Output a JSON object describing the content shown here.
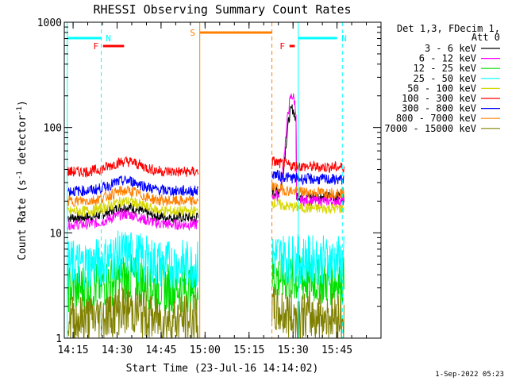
{
  "chart_data": {
    "type": "line",
    "title": "RHESSI Observing Summary Count Rates",
    "xlabel": "Start Time (23-Jul-16 14:14:02)",
    "ylabel_main": "Count Rate (s",
    "ylabel_sup": "-1",
    "ylabel_mid": " detector",
    "ylabel_end": ")",
    "y_scale": "log",
    "ylim": [
      1,
      1000
    ],
    "xlim_minutes": [
      14.2,
      16.0
    ],
    "x_ticks": [
      {
        "label": "14:15",
        "t": 14.25
      },
      {
        "label": "14:30",
        "t": 14.5
      },
      {
        "label": "14:45",
        "t": 14.75
      },
      {
        "label": "15:00",
        "t": 15.0
      },
      {
        "label": "15:15",
        "t": 15.25
      },
      {
        "label": "15:30",
        "t": 15.5
      },
      {
        "label": "15:45",
        "t": 15.75
      }
    ],
    "y_ticks": [
      {
        "label": "1",
        "v": 1
      },
      {
        "label": "10",
        "v": 10
      },
      {
        "label": "100",
        "v": 100
      },
      {
        "label": "1000",
        "v": 1000
      }
    ],
    "legend_title": [
      "Det 1,3, FDecim 1,",
      "Att 0"
    ],
    "legend_position": "top-right",
    "footer": "1-Sep-2022 05:23",
    "series": [
      {
        "name": "3 - 6 keV",
        "color": "#000000",
        "pre": 14,
        "post": 22,
        "flare_peak": 150
      },
      {
        "name": "6 - 12 keV",
        "color": "#ff00ff",
        "pre": 12,
        "post": 20,
        "flare_peak": 200
      },
      {
        "name": "12 - 25 keV",
        "color": "#00e000",
        "pre": 3,
        "post": 3.5
      },
      {
        "name": "25 - 50 keV",
        "color": "#00ffff",
        "pre": 5,
        "post": 5.5
      },
      {
        "name": "50 - 100 keV",
        "color": "#d8d800",
        "pre": 16,
        "post": 17
      },
      {
        "name": "100 - 300 keV",
        "color": "#ff0000",
        "pre": 38,
        "post": 42
      },
      {
        "name": "300 - 800 keV",
        "color": "#0000ff",
        "pre": 25,
        "post": 32
      },
      {
        "name": "800 - 7000 keV",
        "color": "#ff8000",
        "pre": 20,
        "post": 24
      },
      {
        "name": "7000 - 15000 keV",
        "color": "#808000",
        "pre": 1.5,
        "post": 1.6
      }
    ],
    "flags": [
      {
        "label": "N",
        "color": "#00ffff",
        "start": 14.22,
        "end": 14.41,
        "level": 1
      },
      {
        "label": "N",
        "color": "#00ffff",
        "start": 15.53,
        "end": 15.75,
        "level": 1
      },
      {
        "label": "F",
        "color": "#ff0000",
        "start": 14.42,
        "end": 14.54,
        "level": 2
      },
      {
        "label": "F",
        "color": "#ff0000",
        "start": 15.48,
        "end": 15.51,
        "level": 2
      },
      {
        "label": "S",
        "color": "#ff8000",
        "start": 14.97,
        "end": 15.38,
        "level": 0
      }
    ],
    "data_gaps": [
      {
        "start": 14.22,
        "end": 14.2
      },
      {
        "start": 14.96,
        "end": 15.38
      },
      {
        "start": 15.79,
        "end": 16.0
      }
    ],
    "night_markers": [
      {
        "t": 14.217,
        "color": "#00ffff",
        "style": "solid"
      },
      {
        "t": 14.41,
        "color": "#00ffff",
        "style": "dashed"
      },
      {
        "t": 15.53,
        "color": "#00ffff",
        "style": "solid"
      },
      {
        "t": 15.78,
        "color": "#00ffff",
        "style": "dashed"
      }
    ],
    "saa_markers": [
      {
        "t": 14.97,
        "color": "#ff8000",
        "style": "solid"
      },
      {
        "t": 15.38,
        "color": "#ff8000",
        "style": "dashed"
      }
    ]
  }
}
